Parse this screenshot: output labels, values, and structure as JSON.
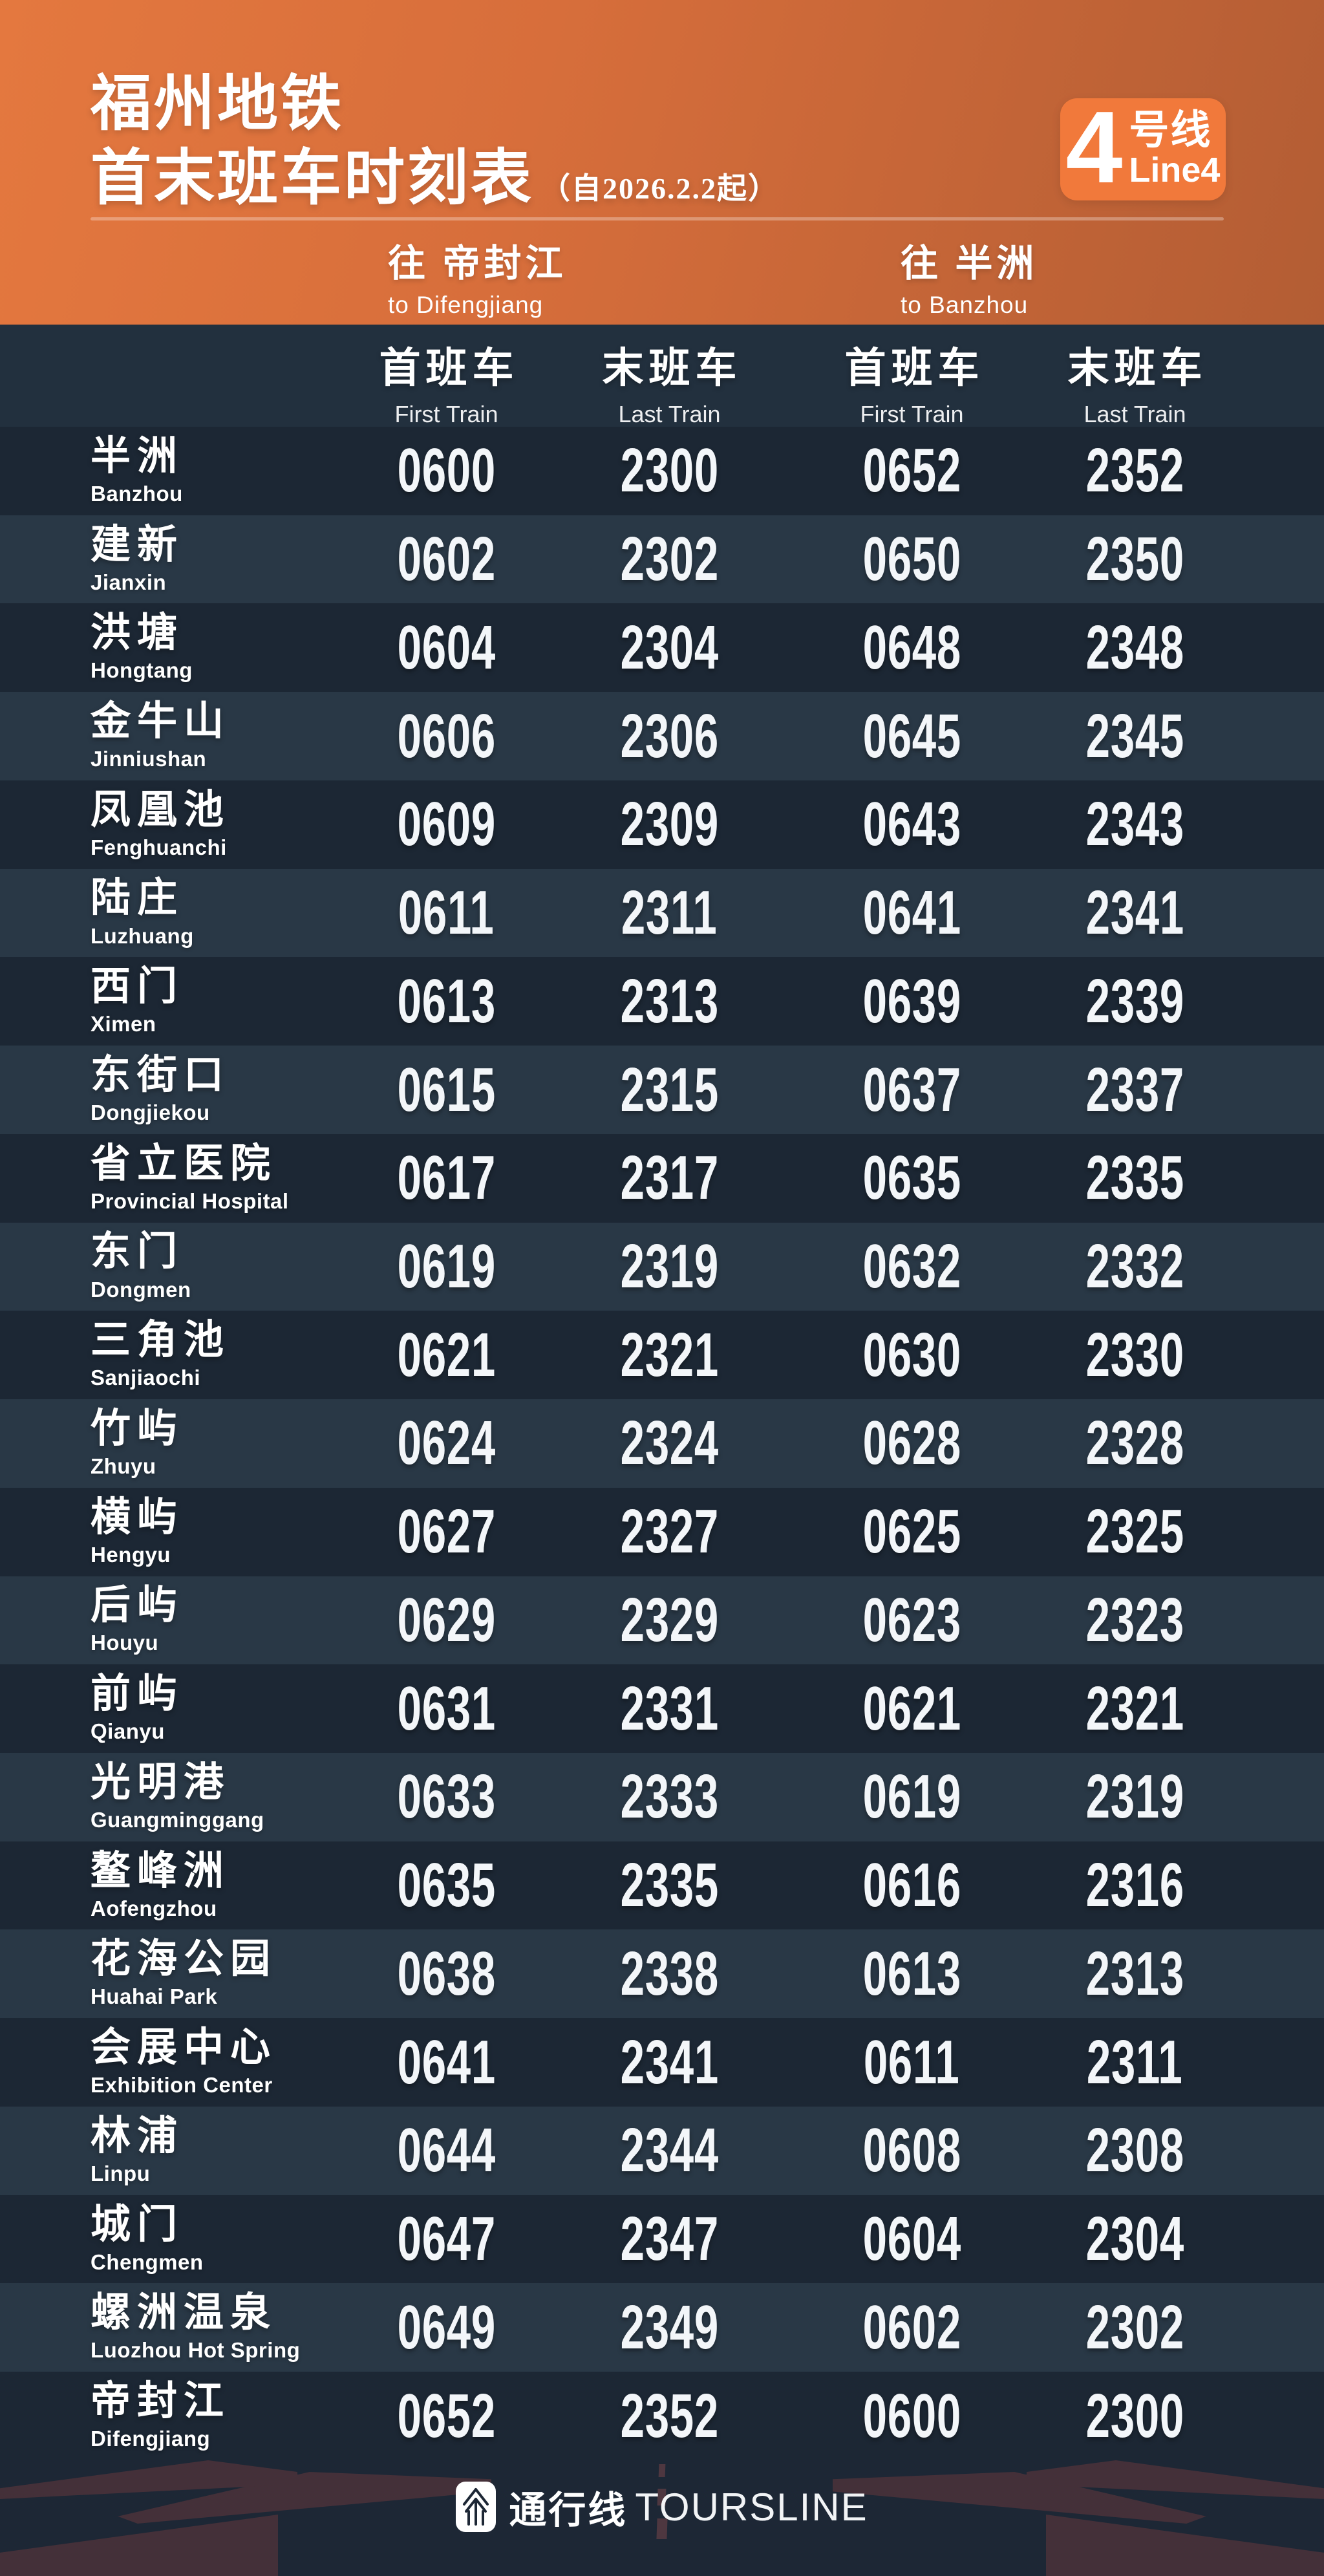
{
  "header": {
    "title_line1": "福州地铁",
    "title_line2": "首末班车时刻表",
    "title_note": "（自2026.2.2起）",
    "badge": {
      "number": "4",
      "suffix_zh": "号线",
      "suffix_en": "Line4"
    },
    "directions": [
      {
        "zh": "往 帝封江",
        "en": "to Difengjiang"
      },
      {
        "zh": "往 半洲",
        "en": "to Banzhou"
      }
    ]
  },
  "table": {
    "columns": [
      {
        "zh": "首班车",
        "en": "First Train"
      },
      {
        "zh": "末班车",
        "en": "Last Train"
      },
      {
        "zh": "首班车",
        "en": "First Train"
      },
      {
        "zh": "末班车",
        "en": "Last Train"
      }
    ],
    "stations": [
      {
        "zh": "半洲",
        "en": "Banzhou",
        "times": [
          "0600",
          "2300",
          "0652",
          "2352"
        ]
      },
      {
        "zh": "建新",
        "en": "Jianxin",
        "times": [
          "0602",
          "2302",
          "0650",
          "2350"
        ]
      },
      {
        "zh": "洪塘",
        "en": "Hongtang",
        "times": [
          "0604",
          "2304",
          "0648",
          "2348"
        ]
      },
      {
        "zh": "金牛山",
        "en": "Jinniushan",
        "times": [
          "0606",
          "2306",
          "0645",
          "2345"
        ]
      },
      {
        "zh": "凤凰池",
        "en": "Fenghuanchi",
        "times": [
          "0609",
          "2309",
          "0643",
          "2343"
        ]
      },
      {
        "zh": "陆庄",
        "en": "Luzhuang",
        "times": [
          "0611",
          "2311",
          "0641",
          "2341"
        ]
      },
      {
        "zh": "西门",
        "en": "Ximen",
        "times": [
          "0613",
          "2313",
          "0639",
          "2339"
        ]
      },
      {
        "zh": "东街口",
        "en": "Dongjiekou",
        "times": [
          "0615",
          "2315",
          "0637",
          "2337"
        ]
      },
      {
        "zh": "省立医院",
        "en": "Provincial Hospital",
        "times": [
          "0617",
          "2317",
          "0635",
          "2335"
        ]
      },
      {
        "zh": "东门",
        "en": "Dongmen",
        "times": [
          "0619",
          "2319",
          "0632",
          "2332"
        ]
      },
      {
        "zh": "三角池",
        "en": "Sanjiaochi",
        "times": [
          "0621",
          "2321",
          "0630",
          "2330"
        ]
      },
      {
        "zh": "竹屿",
        "en": "Zhuyu",
        "times": [
          "0624",
          "2324",
          "0628",
          "2328"
        ]
      },
      {
        "zh": "横屿",
        "en": "Hengyu",
        "times": [
          "0627",
          "2327",
          "0625",
          "2325"
        ]
      },
      {
        "zh": "后屿",
        "en": "Houyu",
        "times": [
          "0629",
          "2329",
          "0623",
          "2323"
        ]
      },
      {
        "zh": "前屿",
        "en": "Qianyu",
        "times": [
          "0631",
          "2331",
          "0621",
          "2321"
        ]
      },
      {
        "zh": "光明港",
        "en": "Guangminggang",
        "times": [
          "0633",
          "2333",
          "0619",
          "2319"
        ]
      },
      {
        "zh": "鳌峰洲",
        "en": "Aofengzhou",
        "times": [
          "0635",
          "2335",
          "0616",
          "2316"
        ]
      },
      {
        "zh": "花海公园",
        "en": "Huahai Park",
        "times": [
          "0638",
          "2338",
          "0613",
          "2313"
        ]
      },
      {
        "zh": "会展中心",
        "en": "Exhibition Center",
        "times": [
          "0641",
          "2341",
          "0611",
          "2311"
        ]
      },
      {
        "zh": "林浦",
        "en": "Linpu",
        "times": [
          "0644",
          "2344",
          "0608",
          "2308"
        ]
      },
      {
        "zh": "城门",
        "en": "Chengmen",
        "times": [
          "0647",
          "2347",
          "0604",
          "2304"
        ]
      },
      {
        "zh": "螺洲温泉",
        "en": "Luozhou Hot Spring",
        "times": [
          "0649",
          "2349",
          "0602",
          "2302"
        ]
      },
      {
        "zh": "帝封江",
        "en": "Difengjiang",
        "times": [
          "0652",
          "2352",
          "0600",
          "2300"
        ]
      }
    ]
  },
  "footer": {
    "logo_zh": "通行线",
    "logo_en": "TOURSLINE"
  },
  "colors": {
    "header_orange_left": "#E4783F",
    "header_orange_right": "#B35D34",
    "badge_orange": "#F1793B",
    "row_dark": "#1C2734",
    "row_light": "#293846",
    "subheader_band": "#22303E",
    "footer_bg": "#1D2735",
    "road_accent": "#443039",
    "time_text": "#F3F6F9"
  }
}
